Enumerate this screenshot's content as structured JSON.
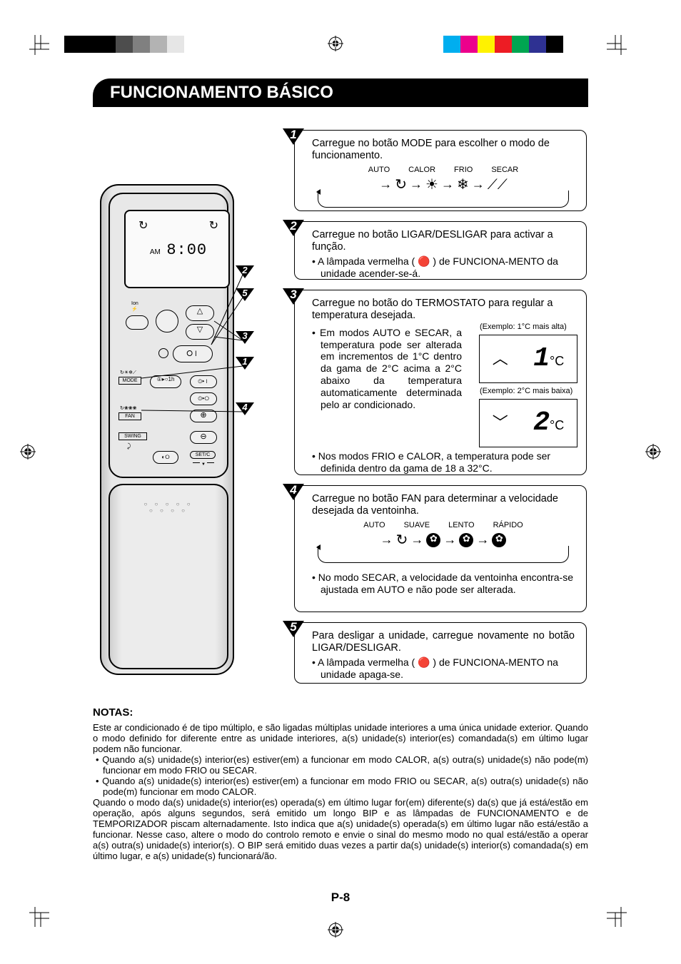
{
  "colorbar_left": [
    "#000000",
    "#000000",
    "#000000",
    "#4d4d4d",
    "#808080",
    "#b3b3b3",
    "#e6e6e6",
    "#ffffff"
  ],
  "colorbar_right": [
    "#ffffff",
    "#00aeef",
    "#ec008c",
    "#fff200",
    "#ed1c24",
    "#00a651",
    "#2e3192",
    "#000000"
  ],
  "title": "FUNCIONAMENTO BÁSICO",
  "remote": {
    "am": "AM",
    "time": "8:00",
    "mode_btn": "MODE",
    "fan_btn": "FAN",
    "swing_btn": "SWING",
    "setc_btn": "SET/C",
    "onoff_btn_sym": "⏻",
    "timer_1h": "①▸○1h"
  },
  "leaders": {
    "1": "1",
    "2": "2",
    "3": "3",
    "4": "4",
    "5": "5"
  },
  "step1": {
    "num": "1",
    "text": "Carregue no botão MODE para escolher o modo de funcionamento.",
    "modes": [
      "AUTO",
      "CALOR",
      "FRIO",
      "SECAR"
    ]
  },
  "step2": {
    "num": "2",
    "text": "Carregue no botão LIGAR/DESLIGAR para activar a função.",
    "sub": "A lâmpada vermelha ( 🔴 ) de FUNCIONA-MENTO da unidade acender-se-á."
  },
  "step3": {
    "num": "3",
    "text": "Carregue no botão do TERMOSTATO para regular a temperatura desejada.",
    "sub1": "Em modos AUTO e SECAR, a temperatura pode ser alterada em incrementos de 1°C dentro da gama de 2°C acima a 2°C abaixo da temperatura automaticamente determinada pelo ar condicionado.",
    "sub2": "Nos modos FRIO e CALOR, a temperatura pode ser definida dentro da gama de 18 a 32°C.",
    "ex1_label": "(Exemplo: 1°C mais alta)",
    "ex1_digit": "1",
    "ex2_label": "(Exemplo: 2°C mais baixa)",
    "ex2_digit": "2",
    "unit": "°C"
  },
  "step4": {
    "num": "4",
    "text": "Carregue no botão FAN para determinar a velocidade desejada da ventoinha.",
    "speeds": [
      "AUTO",
      "SUAVE",
      "LENTO",
      "RÁPIDO"
    ],
    "sub": "No modo SECAR, a velocidade da ventoinha encontra-se ajustada em AUTO e não pode ser alterada."
  },
  "step5": {
    "num": "5",
    "text": "Para desligar a unidade, carregue novamente no botão LIGAR/DESLIGAR.",
    "sub": "A lâmpada vermelha ( 🔴 ) de FUNCIONA-MENTO na unidade apaga-se."
  },
  "notas": {
    "title": "NOTAS:",
    "p1": "Este ar condicionado é de tipo múltiplo, e são ligadas múltiplas unidade interiores a uma única unidade exterior. Quando o modo definido for diferente entre as unidade interiores, a(s) unidade(s) interior(es) comandada(s) em último lugar podem não funcionar.",
    "b1": "Quando a(s) unidade(s) interior(es) estiver(em) a funcionar em modo CALOR, a(s) outra(s) unidade(s) não pode(m) funcionar em modo FRIO ou SECAR.",
    "b2": "Quando a(s) unidade(s) interior(es) estiver(em) a funcionar em modo FRIO ou SECAR, a(s) outra(s) unidade(s) não pode(m) funcionar em modo CALOR.",
    "p2": "Quando o modo da(s) unidade(s) interior(es) operada(s) em último lugar for(em) diferente(s) da(s) que já está/estão em operação, após alguns segundos, será emitido um longo BIP e as lâmpadas de FUNCIONAMENTO e de TEMPORIZADOR piscam alternadamente. Isto indica que a(s) unidade(s) operada(s) em último lugar não está/estão a funcionar. Nesse caso, altere o modo do controlo remoto e envie o sinal do mesmo modo no qual está/estão a operar a(s) outra(s) unidade(s) interior(s). O BIP será emitido duas vezes a partir da(s) unidade(s) interior(s) comandada(s) em último lugar, e a(s) unidade(s) funcionará/ão."
  },
  "page": "P-8"
}
